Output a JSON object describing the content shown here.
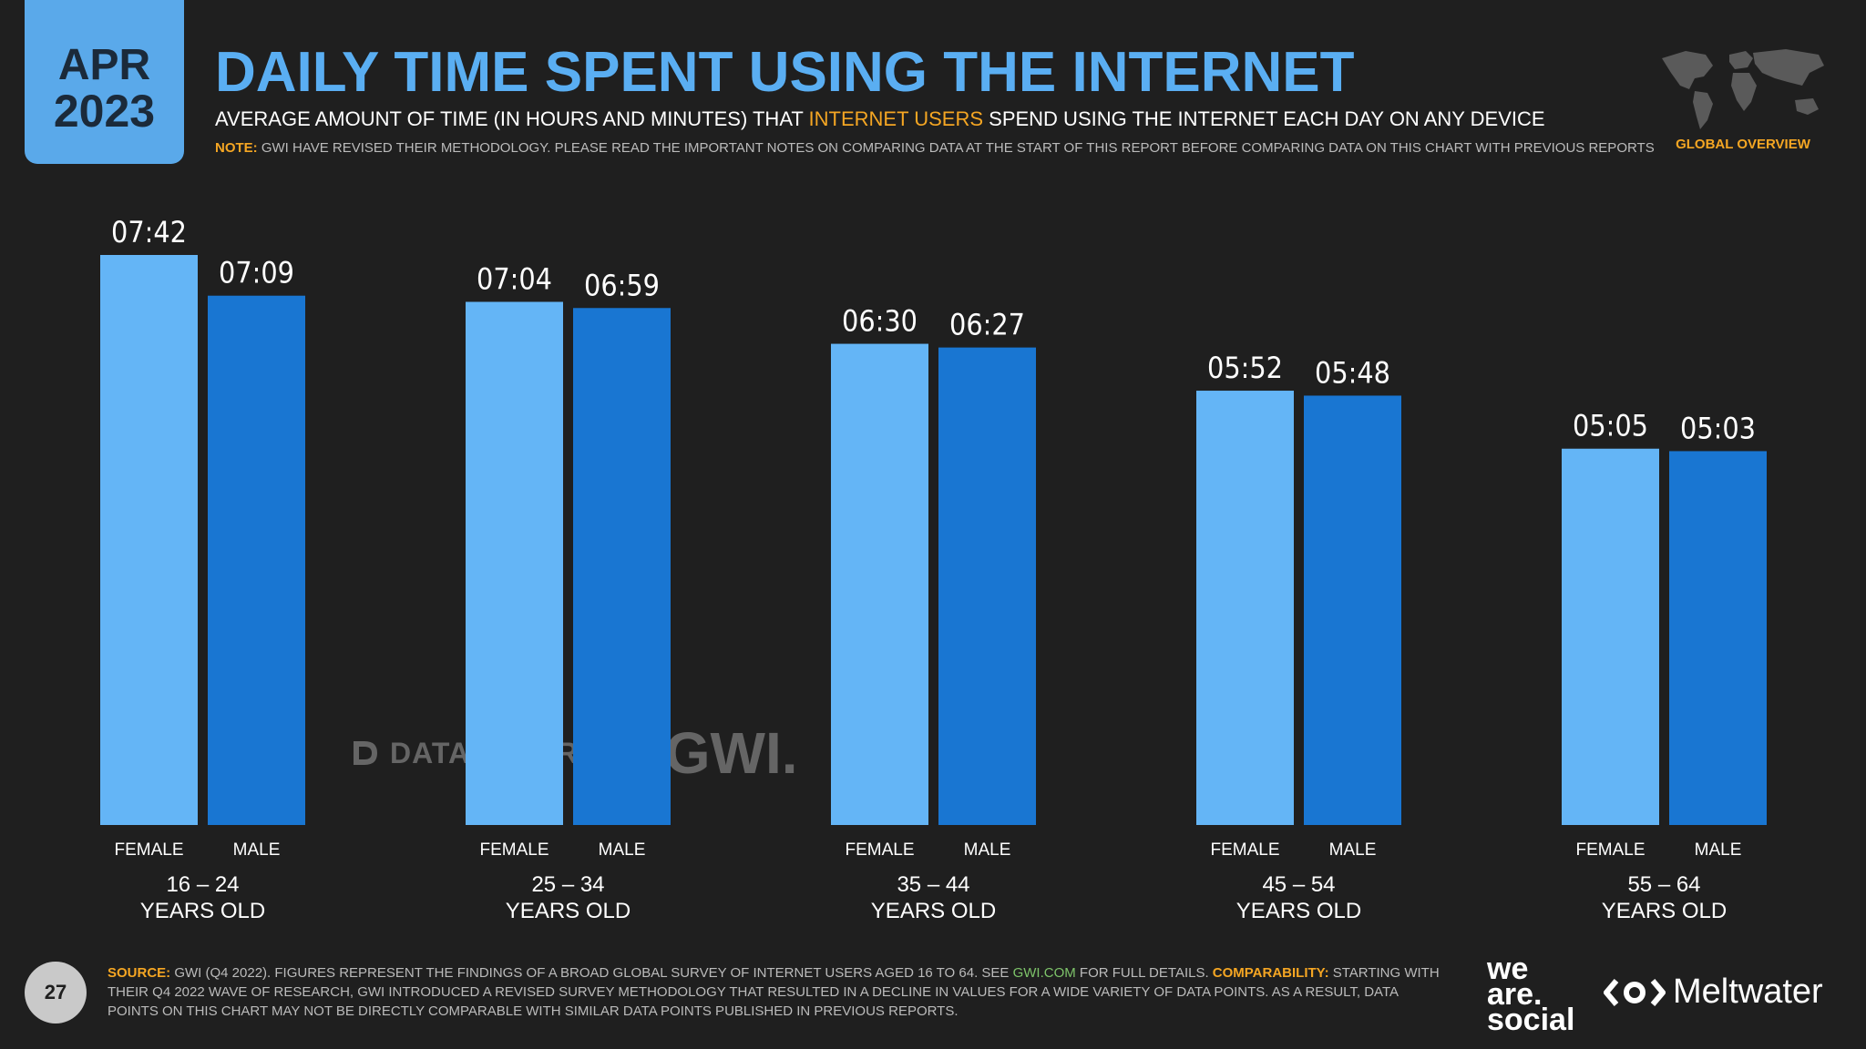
{
  "header": {
    "month": "APR",
    "year": "2023",
    "title": "DAILY TIME SPENT USING THE INTERNET",
    "subtitle_pre": "AVERAGE AMOUNT OF TIME (IN HOURS AND MINUTES) THAT ",
    "subtitle_highlight": "INTERNET USERS",
    "subtitle_post": " SPEND USING THE INTERNET EACH DAY ON ANY DEVICE",
    "note_label": "NOTE:",
    "note_text": " GWI HAVE REVISED THEIR METHODOLOGY. PLEASE READ THE IMPORTANT NOTES ON COMPARING DATA AT THE START OF THIS REPORT BEFORE COMPARING DATA ON THIS CHART WITH PREVIOUS REPORTS",
    "overview": "GLOBAL OVERVIEW"
  },
  "watermark": {
    "datareportal": "DATAREPORTAL",
    "gwi": "GWI."
  },
  "chart_data": {
    "type": "bar",
    "title": "DAILY TIME SPENT USING THE INTERNET",
    "categories": [
      "16 – 24",
      "25 – 34",
      "35 – 44",
      "45 – 54",
      "55 – 64"
    ],
    "category_suffix": "YEARS OLD",
    "series": [
      {
        "name": "FEMALE",
        "color": "#64b5f6",
        "values": [
          462,
          424,
          390,
          352,
          305
        ],
        "labels": [
          "07:42",
          "07:04",
          "06:30",
          "05:52",
          "05:05"
        ]
      },
      {
        "name": "MALE",
        "color": "#1976d2",
        "values": [
          429,
          419,
          387,
          348,
          303
        ],
        "labels": [
          "07:09",
          "06:59",
          "06:27",
          "05:48",
          "05:03"
        ]
      }
    ],
    "unit": "minutes",
    "ylim": [
      0,
      462
    ],
    "grid": false,
    "legend": "none"
  },
  "footer": {
    "page_number": "27",
    "source_label": "SOURCE:",
    "source_text_1": " GWI (Q4 2022). FIGURES REPRESENT THE FINDINGS OF A BROAD GLOBAL SURVEY OF INTERNET USERS AGED 16 TO 64. SEE ",
    "source_link": "GWI.COM",
    "source_text_2": " FOR FULL DETAILS. ",
    "comparability_label": "COMPARABILITY:",
    "comparability_text": " STARTING WITH THEIR Q4 2022 WAVE OF RESEARCH, GWI INTRODUCED A REVISED SURVEY METHODOLOGY THAT RESULTED IN A DECLINE IN VALUES FOR A WIDE VARIETY OF DATA POINTS. AS A RESULT, DATA POINTS ON THIS CHART MAY NOT BE DIRECTLY COMPARABLE WITH SIMILAR DATA POINTS PUBLISHED IN PREVIOUS REPORTS."
  },
  "brands": {
    "we": "we",
    "are": "are.",
    "social": "social",
    "meltwater": "Meltwater"
  }
}
